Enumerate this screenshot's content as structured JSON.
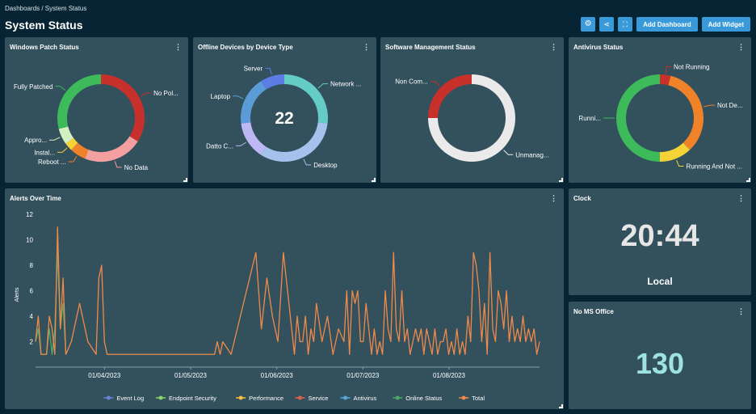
{
  "breadcrumb": "Dashboards / System Status",
  "title": "System Status",
  "toolbar": {
    "add_dashboard": "Add Dashboard",
    "add_widget": "Add Widget",
    "icons": [
      "gear-icon",
      "share-icon",
      "fullscreen-icon"
    ]
  },
  "widgets": {
    "patch": {
      "title": "Windows Patch Status"
    },
    "offline": {
      "title": "Offline Devices by Device Type",
      "center_value": "22"
    },
    "software": {
      "title": "Software Management Status"
    },
    "antivirus": {
      "title": "Antivirus Status"
    },
    "alerts": {
      "title": "Alerts Over Time"
    },
    "clock": {
      "title": "Clock",
      "time": "20:44",
      "zone": "Local"
    },
    "office": {
      "title": "No MS Office",
      "value": "130"
    }
  },
  "chart_data": [
    {
      "id": "patch",
      "type": "pie",
      "labels": [
        "No Pol...",
        "No Data",
        "Reboot ...",
        "Instal...",
        "Appro...",
        "Fully Patched"
      ],
      "values": [
        34,
        22,
        6,
        3,
        6,
        29
      ],
      "colors": [
        "#c8302c",
        "#f4a0a0",
        "#f0822a",
        "#f5d235",
        "#d3efc0",
        "#3dba5a"
      ]
    },
    {
      "id": "offline",
      "type": "pie",
      "labels": [
        "Network ...",
        "Desktop",
        "Datto C...",
        "Laptop",
        "Server"
      ],
      "values": [
        27,
        32,
        14,
        18,
        9
      ],
      "colors": [
        "#64ccc4",
        "#a4c2ec",
        "#bdb8f4",
        "#5b9cd8",
        "#5b7de4"
      ]
    },
    {
      "id": "software",
      "type": "pie",
      "labels": [
        "Unmanag...",
        "Non Com..."
      ],
      "values": [
        75,
        25
      ],
      "colors": [
        "#eaeaea",
        "#c8302c"
      ]
    },
    {
      "id": "antivirus",
      "type": "pie",
      "labels": [
        "Not Running",
        "Not De...",
        "Running And Not ...",
        "Runni..."
      ],
      "values": [
        4,
        34,
        12,
        50
      ],
      "colors": [
        "#c8302c",
        "#f0822a",
        "#f5d235",
        "#3dba5a"
      ]
    },
    {
      "id": "alerts",
      "type": "line",
      "ylabel": "Alerts",
      "ylim": [
        0,
        12
      ],
      "yticks": [
        2,
        4,
        6,
        8,
        10,
        12
      ],
      "xticks": [
        "01/04/2023",
        "01/05/2023",
        "01/06/2023",
        "01/07/2023",
        "01/08/2023"
      ],
      "legend": [
        {
          "name": "Event Log",
          "color": "#6a86d8"
        },
        {
          "name": "Endpoint Security",
          "color": "#8cd46a"
        },
        {
          "name": "Performance",
          "color": "#f3c23a"
        },
        {
          "name": "Service",
          "color": "#e0604a"
        },
        {
          "name": "Antivirus",
          "color": "#5aa8d8"
        },
        {
          "name": "Online Status",
          "color": "#4aaa6a"
        },
        {
          "name": "Total",
          "color": "#f08a4a"
        }
      ],
      "series": [
        {
          "name": "Online Status",
          "color": "#4aaa6a",
          "points": [
            [
              0,
              2
            ],
            [
              1,
              3
            ],
            [
              2,
              1
            ],
            [
              3,
              1
            ],
            [
              4,
              1
            ],
            [
              5,
              3
            ],
            [
              6,
              1
            ],
            [
              7,
              3
            ],
            [
              8,
              9
            ],
            [
              9,
              3
            ],
            [
              10,
              5
            ],
            [
              11,
              1
            ]
          ]
        },
        {
          "name": "Total",
          "color": "#f08a4a",
          "points": [
            [
              0,
              2
            ],
            [
              1,
              4
            ],
            [
              2,
              1
            ],
            [
              3,
              1
            ],
            [
              4,
              1
            ],
            [
              5,
              4
            ],
            [
              6,
              3
            ],
            [
              7,
              1
            ],
            [
              8,
              11
            ],
            [
              9,
              3
            ],
            [
              10,
              7
            ],
            [
              11,
              1
            ],
            [
              13,
              2
            ],
            [
              16,
              5
            ],
            [
              19,
              2
            ],
            [
              22,
              1
            ],
            [
              23,
              7
            ],
            [
              24,
              8
            ],
            [
              25,
              2
            ],
            [
              26,
              1
            ],
            [
              30,
              1
            ],
            [
              40,
              1
            ],
            [
              50,
              1
            ],
            [
              60,
              1
            ],
            [
              65,
              1
            ],
            [
              66,
              2
            ],
            [
              67,
              1
            ],
            [
              68,
              2
            ],
            [
              71,
              1
            ],
            [
              80,
              9
            ],
            [
              82,
              3
            ],
            [
              84,
              7
            ],
            [
              86,
              4
            ],
            [
              88,
              2
            ],
            [
              90,
              9
            ],
            [
              92,
              5
            ],
            [
              94,
              1
            ],
            [
              95,
              4
            ],
            [
              96,
              2
            ],
            [
              97,
              2
            ],
            [
              98,
              4
            ],
            [
              99,
              1
            ],
            [
              100,
              3
            ],
            [
              101,
              2
            ],
            [
              102,
              5
            ],
            [
              104,
              2
            ],
            [
              106,
              4
            ],
            [
              108,
              1
            ],
            [
              110,
              3
            ],
            [
              112,
              2
            ],
            [
              113,
              6
            ],
            [
              114,
              1
            ],
            [
              115,
              6
            ],
            [
              116,
              5
            ],
            [
              117,
              6
            ],
            [
              118,
              2
            ],
            [
              119,
              2
            ],
            [
              120,
              5
            ],
            [
              121,
              3
            ],
            [
              122,
              1
            ],
            [
              123,
              3
            ],
            [
              124,
              1
            ],
            [
              125,
              2
            ],
            [
              126,
              1
            ],
            [
              127,
              6
            ],
            [
              128,
              3
            ],
            [
              129,
              2
            ],
            [
              130,
              9
            ],
            [
              131,
              3
            ],
            [
              132,
              2
            ],
            [
              133,
              6
            ],
            [
              134,
              2
            ],
            [
              135,
              3
            ],
            [
              136,
              1
            ],
            [
              137,
              2
            ],
            [
              138,
              3
            ],
            [
              139,
              2
            ],
            [
              140,
              3
            ],
            [
              141,
              1
            ],
            [
              142,
              3
            ],
            [
              143,
              2
            ],
            [
              144,
              1
            ],
            [
              145,
              3
            ],
            [
              146,
              1
            ],
            [
              147,
              2
            ],
            [
              148,
              2
            ],
            [
              149,
              3
            ],
            [
              150,
              1
            ],
            [
              151,
              2
            ],
            [
              152,
              1
            ],
            [
              153,
              3
            ],
            [
              154,
              1
            ],
            [
              155,
              2
            ],
            [
              156,
              1
            ],
            [
              157,
              4
            ],
            [
              158,
              2
            ],
            [
              159,
              9
            ],
            [
              160,
              8
            ],
            [
              161,
              6
            ],
            [
              162,
              2
            ],
            [
              163,
              5
            ],
            [
              164,
              1
            ],
            [
              165,
              9
            ],
            [
              166,
              3
            ],
            [
              167,
              2
            ],
            [
              168,
              6
            ],
            [
              169,
              5
            ],
            [
              170,
              3
            ],
            [
              171,
              6
            ],
            [
              172,
              2
            ],
            [
              173,
              4
            ],
            [
              174,
              2
            ],
            [
              175,
              3
            ],
            [
              176,
              2
            ],
            [
              177,
              4
            ],
            [
              178,
              2
            ],
            [
              179,
              3
            ],
            [
              180,
              2
            ],
            [
              181,
              3
            ],
            [
              182,
              1
            ],
            [
              183,
              2
            ]
          ]
        }
      ]
    }
  ]
}
